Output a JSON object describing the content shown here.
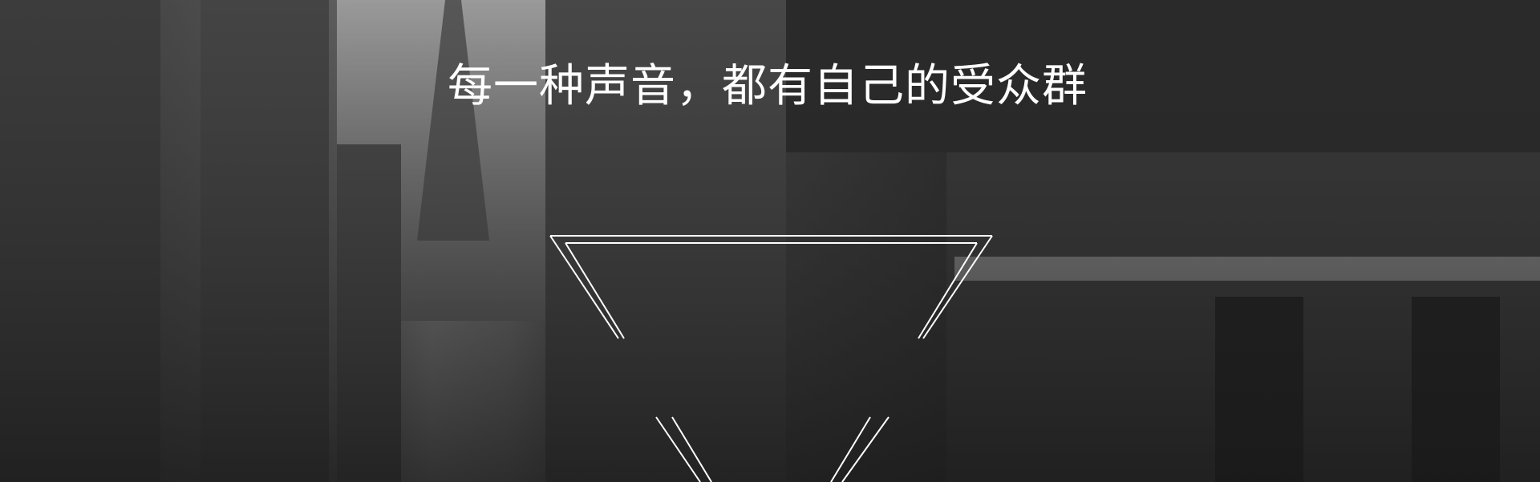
{
  "banner": {
    "slogan": "每一种声音，都有自己的受众群"
  }
}
